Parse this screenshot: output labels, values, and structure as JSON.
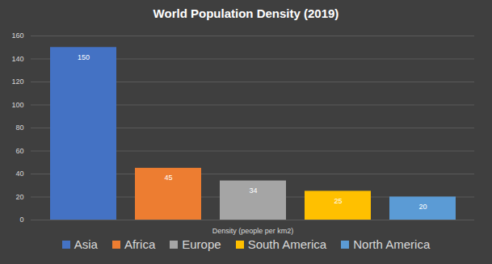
{
  "chart_data": {
    "type": "bar",
    "title": "World Population Density (2019)",
    "x_label": "Density (people per km2)",
    "categories": [
      "Asia",
      "Africa",
      "Europe",
      "South America",
      "North America"
    ],
    "values": [
      150,
      45,
      34,
      25,
      20
    ],
    "colors": [
      "#4472c4",
      "#ed7d31",
      "#a5a5a5",
      "#ffc000",
      "#5b9bd5"
    ],
    "ylim": [
      0,
      160
    ],
    "yticks": [
      0,
      20,
      40,
      60,
      80,
      100,
      120,
      140,
      160
    ],
    "grid": true,
    "data_labels": true,
    "legend": "bottom",
    "tick_labels": "y"
  }
}
